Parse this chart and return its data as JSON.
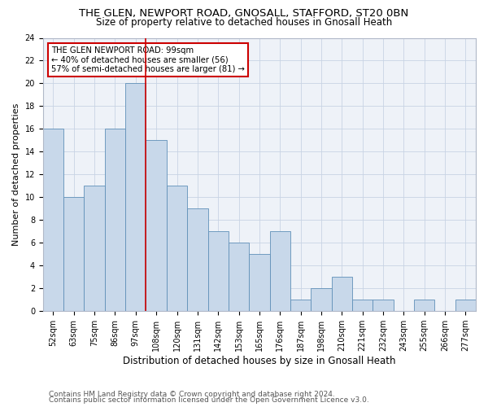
{
  "title1": "THE GLEN, NEWPORT ROAD, GNOSALL, STAFFORD, ST20 0BN",
  "title2": "Size of property relative to detached houses in Gnosall Heath",
  "xlabel": "Distribution of detached houses by size in Gnosall Heath",
  "ylabel": "Number of detached properties",
  "footnote1": "Contains HM Land Registry data © Crown copyright and database right 2024.",
  "footnote2": "Contains public sector information licensed under the Open Government Licence v3.0.",
  "categories": [
    "52sqm",
    "63sqm",
    "75sqm",
    "86sqm",
    "97sqm",
    "108sqm",
    "120sqm",
    "131sqm",
    "142sqm",
    "153sqm",
    "165sqm",
    "176sqm",
    "187sqm",
    "198sqm",
    "210sqm",
    "221sqm",
    "232sqm",
    "243sqm",
    "255sqm",
    "266sqm",
    "277sqm"
  ],
  "values": [
    16,
    10,
    11,
    16,
    20,
    15,
    11,
    9,
    7,
    6,
    5,
    7,
    1,
    2,
    3,
    1,
    1,
    0,
    1,
    0,
    1
  ],
  "bar_color": "#c8d8ea",
  "bar_edge_color": "#6090b8",
  "vline_x_index": 4,
  "vline_color": "#cc0000",
  "annotation_text": "THE GLEN NEWPORT ROAD: 99sqm\n← 40% of detached houses are smaller (56)\n57% of semi-detached houses are larger (81) →",
  "annotation_box_color": "#ffffff",
  "annotation_box_edge": "#cc0000",
  "ylim": [
    0,
    24
  ],
  "yticks": [
    0,
    2,
    4,
    6,
    8,
    10,
    12,
    14,
    16,
    18,
    20,
    22,
    24
  ],
  "grid_color": "#c8d4e4",
  "bg_color": "#eef2f8",
  "title1_fontsize": 9.5,
  "title2_fontsize": 8.5,
  "xlabel_fontsize": 8.5,
  "ylabel_fontsize": 8,
  "tick_fontsize": 7,
  "annot_fontsize": 7.2,
  "footnote_fontsize": 6.5
}
